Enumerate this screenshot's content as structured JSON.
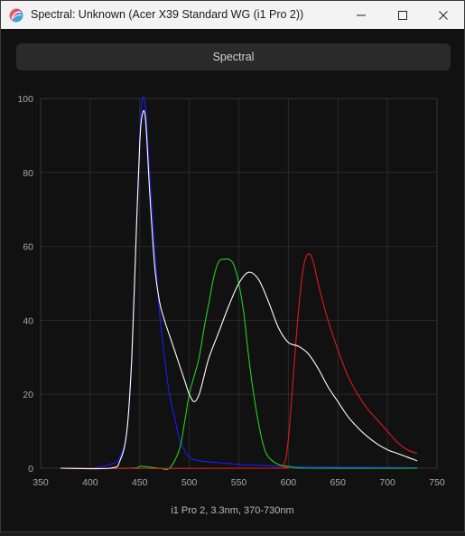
{
  "window": {
    "title": "Spectral: Unknown (Acer X39 Standard WG (i1 Pro 2))",
    "minimize_icon": "minimize-icon",
    "maximize_icon": "maximize-icon",
    "close_icon": "close-icon"
  },
  "tabs": {
    "spectral_label": "Spectral"
  },
  "caption": "i1 Pro 2, 3.3nm, 370-730nm",
  "colors": {
    "background": "#111111",
    "grid": "#2a2a2a",
    "tick_text": "#a8a8a8",
    "blue": "#1a1aff",
    "green": "#20d020",
    "red": "#e01a1a",
    "white": "#ffffff"
  },
  "chart_data": {
    "type": "line",
    "xlim": [
      350,
      750
    ],
    "ylim": [
      0,
      100
    ],
    "xticks": [
      350,
      400,
      450,
      500,
      550,
      600,
      650,
      700,
      750
    ],
    "yticks": [
      0,
      20,
      40,
      60,
      80,
      100
    ],
    "grid": true,
    "series": [
      {
        "color": "#1a1aff",
        "points": [
          [
            370,
            0
          ],
          [
            400,
            0
          ],
          [
            420,
            1
          ],
          [
            430,
            3
          ],
          [
            437,
            10
          ],
          [
            442,
            30
          ],
          [
            446,
            60
          ],
          [
            450,
            90
          ],
          [
            453,
            100
          ],
          [
            456,
            97
          ],
          [
            460,
            80
          ],
          [
            465,
            60
          ],
          [
            470,
            42
          ],
          [
            475,
            30
          ],
          [
            480,
            20
          ],
          [
            485,
            14
          ],
          [
            490,
            8
          ],
          [
            495,
            5
          ],
          [
            500,
            3
          ],
          [
            510,
            2
          ],
          [
            530,
            1.5
          ],
          [
            550,
            1
          ],
          [
            570,
            0.8
          ],
          [
            600,
            0.5
          ],
          [
            650,
            0.3
          ],
          [
            700,
            0.2
          ],
          [
            730,
            0.1
          ]
        ]
      },
      {
        "color": "#20d020",
        "points": [
          [
            370,
            0
          ],
          [
            440,
            0
          ],
          [
            450,
            0.5
          ],
          [
            460,
            0.3
          ],
          [
            470,
            0
          ],
          [
            480,
            0
          ],
          [
            490,
            5
          ],
          [
            495,
            12
          ],
          [
            500,
            20
          ],
          [
            505,
            25
          ],
          [
            510,
            30
          ],
          [
            515,
            38
          ],
          [
            520,
            45
          ],
          [
            525,
            52
          ],
          [
            530,
            56
          ],
          [
            535,
            56.5
          ],
          [
            540,
            56.5
          ],
          [
            545,
            55
          ],
          [
            550,
            50
          ],
          [
            555,
            42
          ],
          [
            560,
            30
          ],
          [
            565,
            20
          ],
          [
            570,
            12
          ],
          [
            575,
            6
          ],
          [
            580,
            3
          ],
          [
            590,
            1
          ],
          [
            600,
            0.5
          ],
          [
            620,
            0
          ],
          [
            730,
            0
          ]
        ]
      },
      {
        "color": "#e01a1a",
        "points": [
          [
            370,
            0
          ],
          [
            580,
            0
          ],
          [
            595,
            1
          ],
          [
            600,
            8
          ],
          [
            605,
            25
          ],
          [
            610,
            42
          ],
          [
            615,
            54
          ],
          [
            620,
            58
          ],
          [
            625,
            56
          ],
          [
            630,
            50
          ],
          [
            640,
            40
          ],
          [
            650,
            32
          ],
          [
            660,
            25
          ],
          [
            670,
            20
          ],
          [
            680,
            16
          ],
          [
            690,
            13
          ],
          [
            700,
            10
          ],
          [
            710,
            7
          ],
          [
            720,
            5
          ],
          [
            730,
            4
          ]
        ]
      },
      {
        "color": "#ffffff",
        "points": [
          [
            370,
            0
          ],
          [
            420,
            0
          ],
          [
            430,
            2
          ],
          [
            437,
            10
          ],
          [
            442,
            30
          ],
          [
            446,
            60
          ],
          [
            450,
            88
          ],
          [
            453,
            96
          ],
          [
            456,
            94
          ],
          [
            460,
            75
          ],
          [
            465,
            55
          ],
          [
            470,
            45
          ],
          [
            475,
            40
          ],
          [
            480,
            36
          ],
          [
            485,
            32
          ],
          [
            490,
            28
          ],
          [
            495,
            24
          ],
          [
            500,
            20
          ],
          [
            505,
            18
          ],
          [
            510,
            20
          ],
          [
            515,
            25
          ],
          [
            520,
            30
          ],
          [
            530,
            37
          ],
          [
            540,
            44
          ],
          [
            550,
            50
          ],
          [
            560,
            53
          ],
          [
            570,
            51
          ],
          [
            580,
            45
          ],
          [
            590,
            38
          ],
          [
            600,
            34
          ],
          [
            610,
            33
          ],
          [
            620,
            31
          ],
          [
            630,
            27
          ],
          [
            640,
            22
          ],
          [
            650,
            18
          ],
          [
            660,
            14
          ],
          [
            670,
            11
          ],
          [
            680,
            8.5
          ],
          [
            690,
            6.5
          ],
          [
            700,
            5
          ],
          [
            710,
            4
          ],
          [
            720,
            3
          ],
          [
            730,
            2
          ]
        ]
      }
    ]
  }
}
